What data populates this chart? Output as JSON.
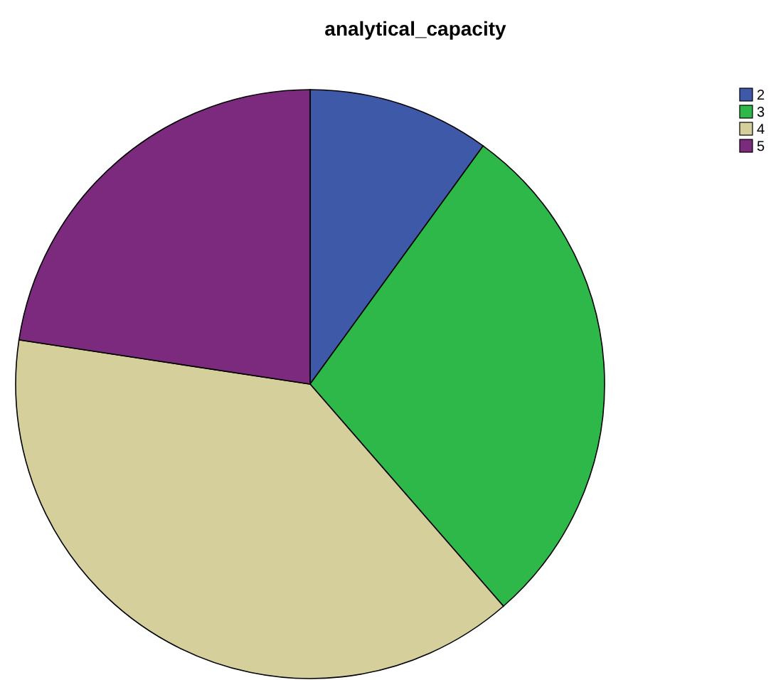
{
  "chart_data": {
    "type": "pie",
    "title": "analytical_capacity",
    "categories": [
      "2",
      "3",
      "4",
      "5"
    ],
    "values": [
      10,
      28.6,
      38.8,
      22.6
    ],
    "colors": [
      "#3f59a9",
      "#2eb84a",
      "#d4cf9b",
      "#7b2a7d"
    ],
    "legend": "top right"
  }
}
